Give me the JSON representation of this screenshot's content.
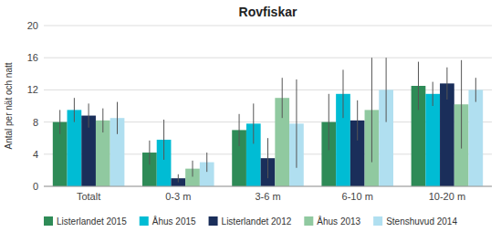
{
  "chart_data": {
    "type": "bar",
    "title": "Rovfiskar",
    "ylabel": "Antal per nät och natt",
    "categories": [
      "Totalt",
      "0-3 m",
      "3-6 m",
      "6-10 m",
      "10-20 m"
    ],
    "series": [
      {
        "name": "Listerlandet 2015",
        "color": "#2e8b57",
        "values": [
          8.0,
          4.2,
          7.0,
          8.0,
          12.5
        ],
        "errors": [
          1.5,
          1.5,
          2.0,
          3.5,
          3.0
        ]
      },
      {
        "name": "Åhus 2015",
        "color": "#00bcd4",
        "values": [
          9.5,
          5.8,
          7.8,
          11.5,
          11.5
        ],
        "errors": [
          1.5,
          2.5,
          2.5,
          3.0,
          1.5
        ]
      },
      {
        "name": "Listerlandet 2012",
        "color": "#1a2e5a",
        "values": [
          8.8,
          1.0,
          3.5,
          8.2,
          12.8
        ],
        "errors": [
          1.5,
          0.5,
          2.5,
          2.5,
          2.0
        ]
      },
      {
        "name": "Åhus 2013",
        "color": "#90c9a0",
        "values": [
          8.2,
          2.2,
          11.0,
          9.5,
          10.2
        ],
        "errors": [
          1.5,
          1.0,
          2.5,
          6.5,
          5.5
        ]
      },
      {
        "name": "Stenshuvud 2014",
        "color": "#b0dff0",
        "values": [
          8.5,
          3.0,
          7.8,
          12.0,
          12.0
        ],
        "errors": [
          2.0,
          1.2,
          5.5,
          4.0,
          1.5
        ]
      }
    ],
    "ylim": [
      0,
      20
    ],
    "yticks": [
      0,
      4,
      8,
      12,
      16,
      20
    ],
    "grid": true,
    "legend": "bottom"
  }
}
